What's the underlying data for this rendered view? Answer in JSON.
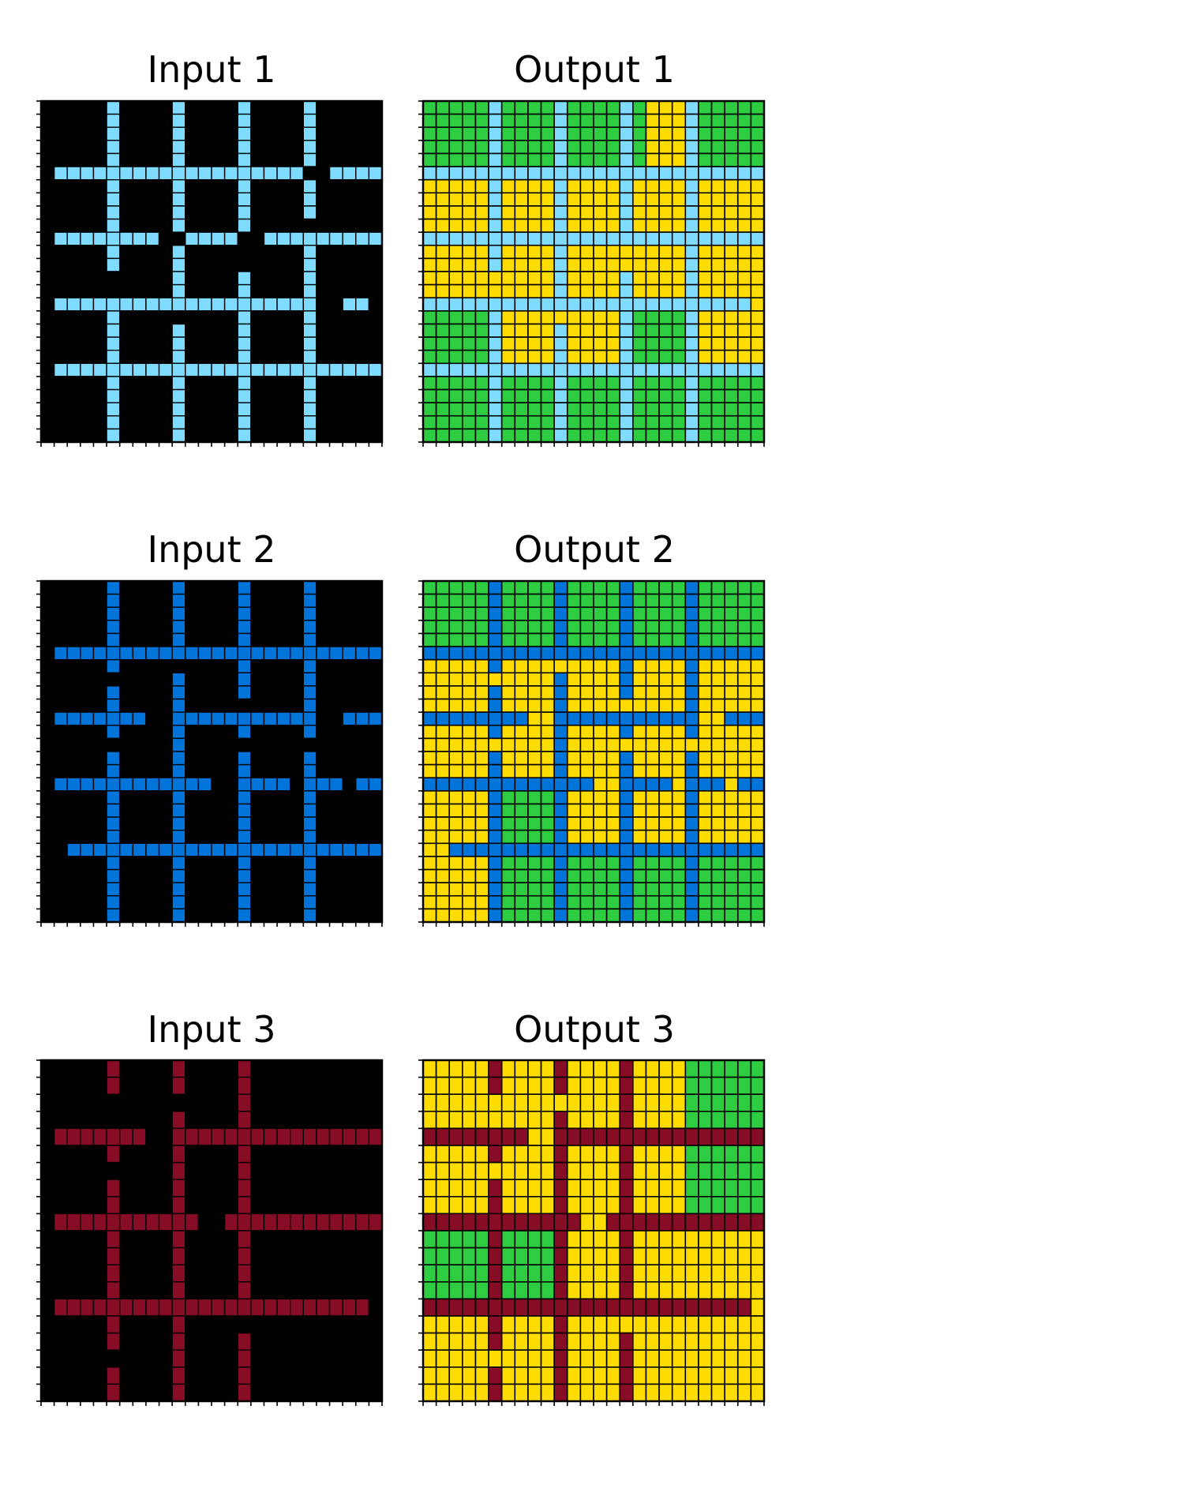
{
  "palette": {
    "0": "#000000",
    "1": "#0074D9",
    "3": "#2ECC40",
    "4": "#FFDC00",
    "8": "#7FDBFF",
    "9": "#870C25"
  },
  "pairs": [
    {
      "input": {
        "title": "Input 1",
        "grid": [
          "00000800008000080000800000",
          "00000800008000080000800000",
          "00000800008000080000800000",
          "00000800008000080000800000",
          "00000800008000080000800000",
          "08888888888888888888008888",
          "00000800008000080000800000",
          "00000800008000080000800000",
          "00000800008000080000800000",
          "00000800008000080000000000",
          "08888888800888800888888888",
          "00000800008000000000800000",
          "00000800008000000000800000",
          "00000000008000080000800000",
          "00000000008000080000800000",
          "08888888888888888888800880",
          "00000800000000080000800000",
          "00000800008000080000800000",
          "00000800008000080000800000",
          "00000800008000080000800000",
          "08888888888888888888888888",
          "00000800008000080000800000",
          "00000800008000080000800000",
          "00000800008000080000800000",
          "00000800008000080000800000",
          "00000800008000080000800000"
        ]
      },
      "output": {
        "title": "Output 1",
        "grid": [
          "33333833338333383444833333",
          "33333833338333383444833333",
          "33333833338333383444833333",
          "33333833338333383444833333",
          "33333833338333383444833333",
          "88888888888888888888888888",
          "44444844448444484444844444",
          "44444844448444484444844444",
          "44444844448444484444844444",
          "44444844448444484444844444",
          "88888888888888888888888888",
          "44444844448444444444844444",
          "44444844448444444444844444",
          "44444444448444484444844444",
          "44444444448444484444844444",
          "88888888888888888888888884",
          "33333844444444483333844444",
          "33333844448444483333844444",
          "33333844448444483333844444",
          "33333844448444483333844444",
          "88888888888888888888888888",
          "33333833338333383333833333",
          "33333833338333383333833333",
          "33333833338333383333833333",
          "33333833338333383333833333",
          "33333833338333383333833333"
        ]
      }
    },
    {
      "input": {
        "title": "Input 2",
        "grid": [
          "00000100001000010000100000",
          "00000100001000010000100000",
          "00000100001000010000100000",
          "00000100001000010000100000",
          "00000100001000010000100000",
          "01111111111111111111111111",
          "00000100000000010000100000",
          "00000000001000010000100000",
          "00000100001000010000100000",
          "00000100001000000000100000",
          "01111111001111111111100111",
          "00000100001000010000100000",
          "00000000001000000000000000",
          "00000100001000010000100000",
          "00000100001000010000100000",
          "01111111111110011110111011",
          "00000100001000010000100000",
          "00000100001000010000100000",
          "00000100001000010000100000",
          "00000100001000010000100000",
          "00111111111111111111111111",
          "00000100001000010000100000",
          "00000100001000010000100000",
          "00000100001000010000100000",
          "00000100001000010000100000",
          "00000100001000010000100000"
        ]
      },
      "output": {
        "title": "Output 2",
        "grid": [
          "33333133331333313333133333",
          "33333133331333313333133333",
          "33333133331333313333133333",
          "33333133331333313333133333",
          "33333133331333313333133333",
          "11111111111111111111111111",
          "44444144444444414444144444",
          "44444444441444414444144444",
          "44444144441444414444144444",
          "44444144441444444444144444",
          "11111111441111111111144111",
          "44444144441444414444144444",
          "44444444441444444444444444",
          "44444144441444414444144444",
          "44444144441444414444144444",
          "11111111111114411114111411",
          "44444133331444414444144444",
          "44444133331444414444144444",
          "44444133331444414444144444",
          "44444133331444414444144444",
          "44111111111111111111111111",
          "44444133331333313333133333",
          "44444133331333313333133333",
          "44444133331333313333133333",
          "44444133331333313333133333",
          "44444133331333313333133333"
        ]
      }
    },
    {
      "input": {
        "title": "Input 3",
        "grid": [
          "00000900009000090000000000",
          "00000900009000090000000000",
          "00000000000000090000000000",
          "00000000009000090000000000",
          "09999999009999999999999999",
          "00000900009000090000000000",
          "00000000009000090000000000",
          "00000900009000090000000000",
          "00000900009000090000000000",
          "09999999999900999999999999",
          "00000900009000090000000000",
          "00000900009000090000000000",
          "00000900009000090000000000",
          "00000900009000090000000000",
          "09999999999999999999999990",
          "00000900009000000000000000",
          "00000900009000090000000000",
          "00000000009000090000000000",
          "00000900009000090000000000",
          "00000900009000090000000000"
        ]
      },
      "output": {
        "title": "Output 3",
        "grid": [
          "44444944449444494444333333",
          "44444944449444494444333333",
          "44444444444444494444333333",
          "44444444449444494444333333",
          "99999999449999999999999999",
          "44444944449444494444333333",
          "44444444449444494444333333",
          "44444944449444494444333333",
          "44444944449444494444333333",
          "99999999999944999999999999",
          "33333933339444494444444444",
          "33333933339444494444444444",
          "33333933339444494444444444",
          "33333933339444494444444444",
          "99999999999999999999999994",
          "44444944449444444444444444",
          "44444944449444494444444444",
          "44444444449444494444444444",
          "44444944449444494444444444",
          "44444944449444494444444444"
        ]
      }
    }
  ]
}
